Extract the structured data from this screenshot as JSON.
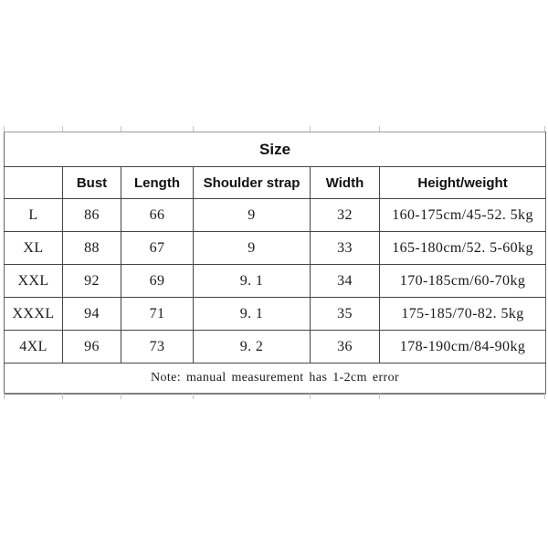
{
  "chart_data": {
    "type": "table",
    "title": "Size",
    "columns": [
      "",
      "Bust",
      "Length",
      "Shoulder strap",
      "Width",
      "Height/weight"
    ],
    "rows": [
      {
        "size": "L",
        "bust": "86",
        "length": "66",
        "shoulder_strap": "9",
        "width": "32",
        "height_weight": "160-175cm/45-52. 5kg"
      },
      {
        "size": "XL",
        "bust": "88",
        "length": "67",
        "shoulder_strap": "9",
        "width": "33",
        "height_weight": "165-180cm/52. 5-60kg"
      },
      {
        "size": "XXL",
        "bust": "92",
        "length": "69",
        "shoulder_strap": "9. 1",
        "width": "34",
        "height_weight": "170-185cm/60-70kg"
      },
      {
        "size": "XXXL",
        "bust": "94",
        "length": "71",
        "shoulder_strap": "9. 1",
        "width": "35",
        "height_weight": "175-185/70-82. 5kg"
      },
      {
        "size": "4XL",
        "bust": "96",
        "length": "73",
        "shoulder_strap": "9. 2",
        "width": "36",
        "height_weight": "178-190cm/84-90kg"
      }
    ],
    "note": "Note: manual measurement has 1-2cm error",
    "layout_hints": {
      "grid": "on",
      "title_position": "top-center-merged-row",
      "note_position": "bottom-merged-row"
    },
    "colors": {
      "background": "#ffffff",
      "grid_inner": "#454545",
      "border_top": "#9a9a9a",
      "border_bottom": "#7f7f7f",
      "text": "#1a1a1a"
    }
  }
}
